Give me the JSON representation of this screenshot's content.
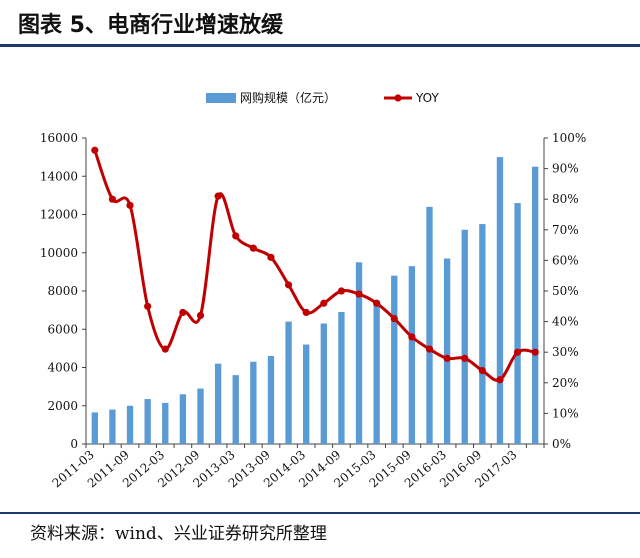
{
  "header": {
    "title": "图表 5、电商行业增速放缓"
  },
  "footer": {
    "source": "资料来源：wind、兴业证券研究所整理"
  },
  "colors": {
    "bar": "#5b9bd5",
    "line": "#c00000",
    "rule": "#1c3a70"
  },
  "chart_data": {
    "type": "bar",
    "legend": {
      "position": "top-center"
    },
    "grid": false,
    "categories": [
      "2011-03",
      "2011-06",
      "2011-09",
      "2011-12",
      "2012-03",
      "2012-06",
      "2012-09",
      "2012-12",
      "2013-03",
      "2013-06",
      "2013-09",
      "2013-12",
      "2014-03",
      "2014-06",
      "2014-09",
      "2014-12",
      "2015-03",
      "2015-06",
      "2015-09",
      "2015-12",
      "2016-03",
      "2016-06",
      "2016-09",
      "2016-12",
      "2017-03",
      "2017-06"
    ],
    "x_tick_labels": [
      "2011-03",
      "2011-09",
      "2012-03",
      "2012-09",
      "2013-03",
      "2013-09",
      "2014-03",
      "2014-09",
      "2015-03",
      "2015-09",
      "2016-03",
      "2016-09",
      "2017-03"
    ],
    "series": [
      {
        "name": "网购规模（亿元）",
        "type": "bar",
        "axis": "left",
        "values": [
          1650,
          1800,
          2000,
          2350,
          2150,
          2600,
          2900,
          4200,
          3600,
          4300,
          4600,
          6400,
          5200,
          6300,
          6900,
          9500,
          7500,
          8800,
          9300,
          12400,
          9700,
          11200,
          11500,
          15000,
          12600,
          14500
        ]
      },
      {
        "name": "YOY",
        "type": "line",
        "axis": "right",
        "values": [
          0.96,
          0.8,
          0.78,
          0.45,
          0.31,
          0.43,
          0.42,
          0.81,
          0.68,
          0.64,
          0.61,
          0.52,
          0.43,
          0.46,
          0.5,
          0.49,
          0.46,
          0.41,
          0.35,
          0.31,
          0.28,
          0.28,
          0.24,
          0.21,
          0.3,
          0.3
        ]
      }
    ],
    "y_left": {
      "min": 0,
      "max": 16000,
      "step": 2000,
      "ticks": [
        "0",
        "2000",
        "4000",
        "6000",
        "8000",
        "10000",
        "12000",
        "14000",
        "16000"
      ]
    },
    "y_right": {
      "min": 0,
      "max": 1,
      "step": 0.1,
      "ticks": [
        "0%",
        "10%",
        "20%",
        "30%",
        "40%",
        "50%",
        "60%",
        "70%",
        "80%",
        "90%",
        "100%"
      ]
    }
  }
}
